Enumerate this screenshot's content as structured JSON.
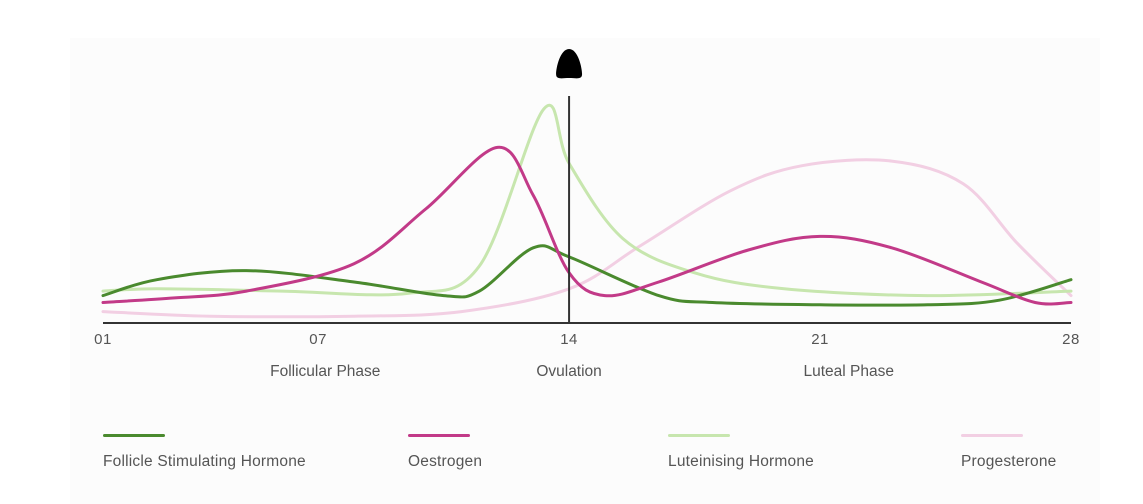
{
  "chart_data": {
    "type": "line",
    "title": "",
    "xlabel": "",
    "ylabel": "",
    "x_range": [
      1,
      28
    ],
    "x_ticks": [
      {
        "value": 1,
        "label": "01"
      },
      {
        "value": 7,
        "label": "07"
      },
      {
        "value": 14,
        "label": "14"
      },
      {
        "value": 21,
        "label": "21"
      },
      {
        "value": 28,
        "label": "28"
      }
    ],
    "y_range": [
      0,
      100
    ],
    "grid": false,
    "axis_color": "#333333",
    "ovulation_marker": {
      "day": 14,
      "icon": "egg-icon",
      "color": "#000000"
    },
    "phases": [
      {
        "label": "Follicular Phase",
        "center_day": 7.2
      },
      {
        "label": "Ovulation",
        "center_day": 14
      },
      {
        "label": "Luteal Phase",
        "center_day": 21.8
      }
    ],
    "series": [
      {
        "name": "Follicle Stimulating Hormone",
        "color": "#4a8a2e",
        "points": [
          [
            1,
            12
          ],
          [
            2.5,
            19
          ],
          [
            5,
            23
          ],
          [
            8,
            18
          ],
          [
            10.5,
            12
          ],
          [
            11.5,
            14
          ],
          [
            13,
            33
          ],
          [
            14,
            29
          ],
          [
            16.5,
            12
          ],
          [
            18,
            9
          ],
          [
            21,
            8
          ],
          [
            24,
            8
          ],
          [
            26,
            10
          ],
          [
            28,
            19
          ]
        ]
      },
      {
        "name": "Oestrogen",
        "color": "#c23a88",
        "points": [
          [
            1,
            9
          ],
          [
            3,
            11
          ],
          [
            5,
            14
          ],
          [
            8,
            26
          ],
          [
            10,
            50
          ],
          [
            12,
            77
          ],
          [
            13,
            56
          ],
          [
            14,
            22
          ],
          [
            15,
            12
          ],
          [
            16.5,
            18
          ],
          [
            19,
            32
          ],
          [
            21,
            38
          ],
          [
            23,
            33
          ],
          [
            25.5,
            18
          ],
          [
            27,
            9
          ],
          [
            28,
            9
          ]
        ]
      },
      {
        "name": "Luteinising Hormone",
        "color": "#c7e6ae",
        "points": [
          [
            1,
            14
          ],
          [
            2.5,
            15
          ],
          [
            6,
            14
          ],
          [
            9.5,
            13
          ],
          [
            11.5,
            25
          ],
          [
            13.3,
            94
          ],
          [
            14,
            70
          ],
          [
            15.5,
            37
          ],
          [
            17.5,
            22
          ],
          [
            20,
            15
          ],
          [
            24,
            12
          ],
          [
            28,
            14
          ]
        ]
      },
      {
        "name": "Progesterone",
        "color": "#f2cfe3",
        "points": [
          [
            1,
            5
          ],
          [
            4,
            3
          ],
          [
            8,
            3
          ],
          [
            11,
            5
          ],
          [
            14,
            15
          ],
          [
            16,
            34
          ],
          [
            18.5,
            58
          ],
          [
            20.5,
            69
          ],
          [
            23,
            71
          ],
          [
            25,
            61
          ],
          [
            26.5,
            35
          ],
          [
            28,
            12
          ]
        ]
      }
    ]
  },
  "legend": [
    {
      "label": "Follicle Stimulating Hormone",
      "color": "#4a8a2e"
    },
    {
      "label": "Oestrogen",
      "color": "#c23a88"
    },
    {
      "label": "Luteinising Hormone",
      "color": "#c7e6ae"
    },
    {
      "label": "Progesterone",
      "color": "#f2cfe3"
    }
  ]
}
